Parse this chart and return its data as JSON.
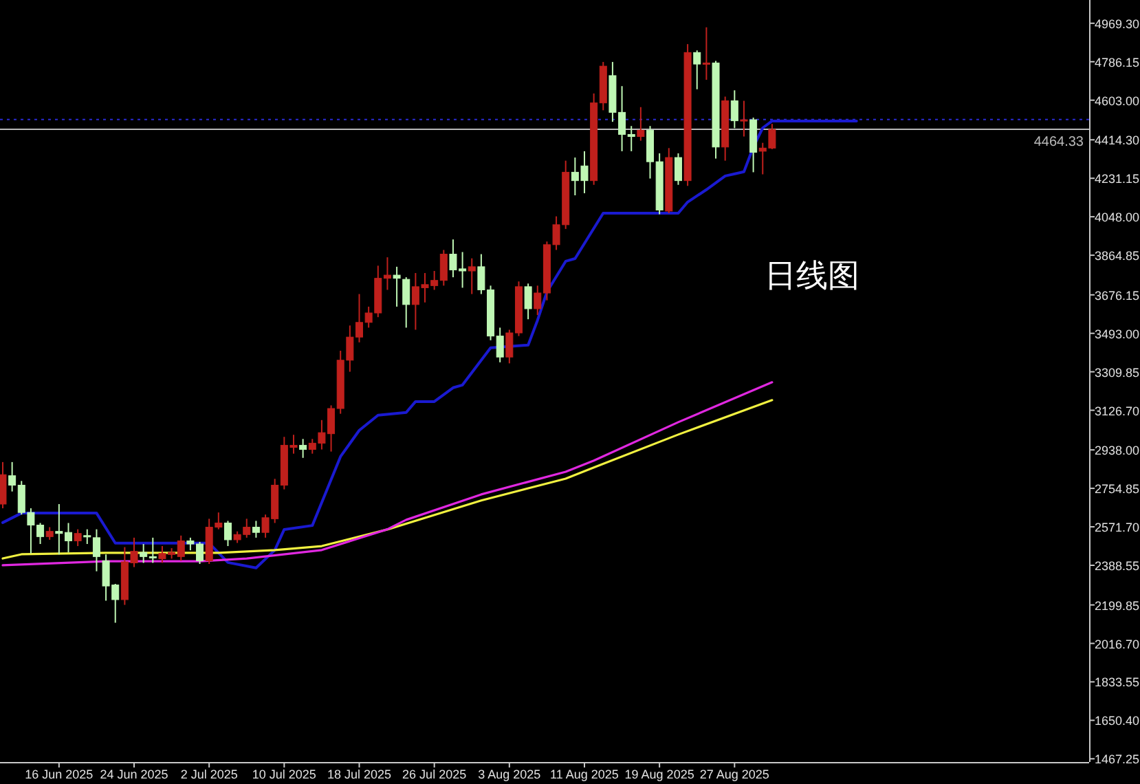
{
  "chart_data": {
    "type": "candlestick",
    "x": [
      "2025-06-10",
      "2025-06-11",
      "2025-06-12",
      "2025-06-13",
      "2025-06-14",
      "2025-06-15",
      "2025-06-16",
      "2025-06-17",
      "2025-06-18",
      "2025-06-19",
      "2025-06-20",
      "2025-06-21",
      "2025-06-22",
      "2025-06-23",
      "2025-06-24",
      "2025-06-25",
      "2025-06-26",
      "2025-06-27",
      "2025-06-28",
      "2025-06-29",
      "2025-06-30",
      "2025-07-01",
      "2025-07-02",
      "2025-07-03",
      "2025-07-04",
      "2025-07-05",
      "2025-07-06",
      "2025-07-07",
      "2025-07-08",
      "2025-07-09",
      "2025-07-10",
      "2025-07-11",
      "2025-07-12",
      "2025-07-13",
      "2025-07-14",
      "2025-07-15",
      "2025-07-16",
      "2025-07-17",
      "2025-07-18",
      "2025-07-19",
      "2025-07-20",
      "2025-07-21",
      "2025-07-22",
      "2025-07-23",
      "2025-07-24",
      "2025-07-25",
      "2025-07-26",
      "2025-07-27",
      "2025-07-28",
      "2025-07-29",
      "2025-07-30",
      "2025-07-31",
      "2025-08-01",
      "2025-08-02",
      "2025-08-03",
      "2025-08-04",
      "2025-08-05",
      "2025-08-06",
      "2025-08-07",
      "2025-08-08",
      "2025-08-09",
      "2025-08-10",
      "2025-08-11",
      "2025-08-12",
      "2025-08-13",
      "2025-08-14",
      "2025-08-15",
      "2025-08-16",
      "2025-08-17",
      "2025-08-18",
      "2025-08-19",
      "2025-08-20",
      "2025-08-21",
      "2025-08-22",
      "2025-08-23",
      "2025-08-24",
      "2025-08-25",
      "2025-08-26",
      "2025-08-27",
      "2025-08-28",
      "2025-08-29",
      "2025-08-30",
      "2025-08-31"
    ],
    "ohlc": [
      [
        2680,
        2880,
        2660,
        2820
      ],
      [
        2815,
        2880,
        2740,
        2770
      ],
      [
        2770,
        2790,
        2630,
        2640
      ],
      [
        2640,
        2660,
        2445,
        2580
      ],
      [
        2580,
        2590,
        2490,
        2525
      ],
      [
        2525,
        2570,
        2510,
        2550
      ],
      [
        2550,
        2680,
        2440,
        2540
      ],
      [
        2545,
        2590,
        2450,
        2505
      ],
      [
        2505,
        2560,
        2480,
        2540
      ],
      [
        2530,
        2560,
        2490,
        2525
      ],
      [
        2520,
        2560,
        2360,
        2430
      ],
      [
        2410,
        2440,
        2220,
        2290
      ],
      [
        2295,
        2300,
        2115,
        2225
      ],
      [
        2225,
        2475,
        2200,
        2405
      ],
      [
        2400,
        2520,
        2380,
        2455
      ],
      [
        2450,
        2490,
        2400,
        2430
      ],
      [
        2430,
        2520,
        2400,
        2425
      ],
      [
        2420,
        2480,
        2400,
        2445
      ],
      [
        2440,
        2470,
        2420,
        2450
      ],
      [
        2430,
        2530,
        2410,
        2505
      ],
      [
        2505,
        2520,
        2460,
        2490
      ],
      [
        2490,
        2500,
        2395,
        2410
      ],
      [
        2410,
        2610,
        2395,
        2570
      ],
      [
        2570,
        2640,
        2560,
        2590
      ],
      [
        2590,
        2600,
        2480,
        2510
      ],
      [
        2510,
        2550,
        2495,
        2535
      ],
      [
        2535,
        2610,
        2520,
        2570
      ],
      [
        2570,
        2600,
        2520,
        2545
      ],
      [
        2545,
        2630,
        2520,
        2615
      ],
      [
        2610,
        2800,
        2590,
        2770
      ],
      [
        2770,
        3000,
        2750,
        2960
      ],
      [
        2950,
        3010,
        2920,
        2960
      ],
      [
        2960,
        2990,
        2900,
        2940
      ],
      [
        2940,
        2990,
        2920,
        2970
      ],
      [
        2970,
        3080,
        2940,
        3020
      ],
      [
        3015,
        3150,
        2930,
        3135
      ],
      [
        3135,
        3410,
        3110,
        3365
      ],
      [
        3365,
        3530,
        3310,
        3475
      ],
      [
        3475,
        3680,
        3450,
        3545
      ],
      [
        3545,
        3620,
        3520,
        3590
      ],
      [
        3590,
        3815,
        3570,
        3755
      ],
      [
        3755,
        3855,
        3700,
        3770
      ],
      [
        3770,
        3810,
        3620,
        3755
      ],
      [
        3750,
        3760,
        3520,
        3630
      ],
      [
        3630,
        3780,
        3510,
        3715
      ],
      [
        3710,
        3780,
        3640,
        3725
      ],
      [
        3720,
        3790,
        3700,
        3745
      ],
      [
        3745,
        3890,
        3720,
        3870
      ],
      [
        3870,
        3940,
        3760,
        3795
      ],
      [
        3800,
        3880,
        3710,
        3790
      ],
      [
        3790,
        3850,
        3680,
        3810
      ],
      [
        3810,
        3870,
        3680,
        3700
      ],
      [
        3700,
        3720,
        3460,
        3480
      ],
      [
        3480,
        3520,
        3355,
        3380
      ],
      [
        3380,
        3510,
        3350,
        3495
      ],
      [
        3495,
        3740,
        3480,
        3715
      ],
      [
        3715,
        3730,
        3560,
        3610
      ],
      [
        3610,
        3720,
        3580,
        3685
      ],
      [
        3685,
        3930,
        3650,
        3915
      ],
      [
        3915,
        4050,
        3890,
        4010
      ],
      [
        4010,
        4315,
        3990,
        4260
      ],
      [
        4260,
        4330,
        4150,
        4220
      ],
      [
        4290,
        4360,
        4160,
        4220
      ],
      [
        4220,
        4635,
        4200,
        4590
      ],
      [
        4590,
        4785,
        4555,
        4765
      ],
      [
        4720,
        4785,
        4500,
        4545
      ],
      [
        4545,
        4670,
        4360,
        4440
      ],
      [
        4440,
        4480,
        4360,
        4430
      ],
      [
        4430,
        4570,
        4410,
        4460
      ],
      [
        4460,
        4480,
        4230,
        4310
      ],
      [
        4310,
        4350,
        4060,
        4080
      ],
      [
        4075,
        4375,
        4065,
        4330
      ],
      [
        4330,
        4350,
        4200,
        4220
      ],
      [
        4220,
        4870,
        4195,
        4830
      ],
      [
        4830,
        4840,
        4655,
        4775
      ],
      [
        4775,
        4950,
        4700,
        4780
      ],
      [
        4780,
        4790,
        4325,
        4380
      ],
      [
        4380,
        4620,
        4315,
        4600
      ],
      [
        4600,
        4650,
        4470,
        4505
      ],
      [
        4505,
        4600,
        4430,
        4510
      ],
      [
        4510,
        4520,
        4260,
        4355
      ],
      [
        4360,
        4400,
        4250,
        4375
      ],
      [
        4375,
        4490,
        4370,
        4464
      ]
    ],
    "colors": [
      "#c0201c",
      "#bff7b4",
      "#bff7b4",
      "#bff7b4",
      "#bff7b4",
      "#c0201c",
      "#bff7b4",
      "#bff7b4",
      "#c0201c",
      "#bff7b4",
      "#bff7b4",
      "#bff7b4",
      "#bff7b4",
      "#c0201c",
      "#c0201c",
      "#bff7b4",
      "#bff7b4",
      "#c0201c",
      "#c0201c",
      "#c0201c",
      "#bff7b4",
      "#bff7b4",
      "#c0201c",
      "#c0201c",
      "#bff7b4",
      "#c0201c",
      "#c0201c",
      "#bff7b4",
      "#c0201c",
      "#c0201c",
      "#c0201c",
      "#c0201c",
      "#bff7b4",
      "#c0201c",
      "#c0201c",
      "#c0201c",
      "#c0201c",
      "#c0201c",
      "#c0201c",
      "#c0201c",
      "#c0201c",
      "#c0201c",
      "#bff7b4",
      "#bff7b4",
      "#c0201c",
      "#c0201c",
      "#c0201c",
      "#c0201c",
      "#bff7b4",
      "#bff7b4",
      "#c0201c",
      "#bff7b4",
      "#bff7b4",
      "#bff7b4",
      "#c0201c",
      "#c0201c",
      "#bff7b4",
      "#c0201c",
      "#c0201c",
      "#c0201c",
      "#c0201c",
      "#bff7b4",
      "#bff7b4",
      "#c0201c",
      "#c0201c",
      "#bff7b4",
      "#bff7b4",
      "#bff7b4",
      "#c0201c",
      "#bff7b4",
      "#bff7b4",
      "#c0201c",
      "#bff7b4",
      "#c0201c",
      "#bff7b4",
      "#c0201c",
      "#bff7b4",
      "#c0201c",
      "#bff7b4",
      "#c0201c",
      "#bff7b4",
      "#c0201c",
      "#c0201c"
    ],
    "series": [
      {
        "type": "line",
        "color": "#1a1ad0",
        "x": [
          "2025-06-10",
          "2025-06-12",
          "2025-06-20",
          "2025-06-22",
          "2025-07-02",
          "2025-07-04",
          "2025-07-07",
          "2025-07-09",
          "2025-07-10",
          "2025-07-13",
          "2025-07-16",
          "2025-07-18",
          "2025-07-20",
          "2025-07-23",
          "2025-07-24",
          "2025-07-26",
          "2025-07-28",
          "2025-07-29",
          "2025-08-01",
          "2025-08-05",
          "2025-08-06",
          "2025-08-07",
          "2025-08-09",
          "2025-08-10",
          "2025-08-13",
          "2025-08-21",
          "2025-08-22",
          "2025-08-24",
          "2025-08-26",
          "2025-08-28",
          "2025-08-29",
          "2025-08-30",
          "2025-08-31",
          "2025-09-09"
        ],
        "values": [
          2592,
          2637,
          2637,
          2494,
          2494,
          2402,
          2376,
          2461,
          2559,
          2578,
          2906,
          3031,
          3103,
          3116,
          3168,
          3168,
          3234,
          3247,
          3424,
          3437,
          3555,
          3690,
          3836,
          3849,
          4065,
          4065,
          4118,
          4177,
          4242,
          4262,
          4380,
          4471,
          4504,
          4504
        ]
      },
      {
        "type": "line",
        "color": "#f0f040",
        "x": [
          "2025-06-10",
          "2025-06-12",
          "2025-06-21",
          "2025-07-03",
          "2025-07-09",
          "2025-07-14",
          "2025-07-21",
          "2025-07-31",
          "2025-08-09",
          "2025-08-12",
          "2025-08-21",
          "2025-08-31"
        ],
        "values": [
          2421,
          2441,
          2448,
          2448,
          2461,
          2480,
          2559,
          2697,
          2801,
          2854,
          3011,
          3175
        ]
      },
      {
        "type": "line",
        "color": "#e028e0",
        "x": [
          "2025-06-10",
          "2025-06-21",
          "2025-07-01",
          "2025-07-06",
          "2025-07-14",
          "2025-07-21",
          "2025-07-23",
          "2025-07-31",
          "2025-08-09",
          "2025-08-12",
          "2025-08-21",
          "2025-08-31"
        ],
        "values": [
          2389,
          2408,
          2408,
          2421,
          2461,
          2560,
          2605,
          2726,
          2834,
          2887,
          3070,
          3260
        ]
      }
    ],
    "xlim": [
      "2025-06-09T17:00",
      "2025-10-03T19:00"
    ],
    "ylim": [
      1452,
      5080
    ],
    "xticks": [
      {
        "value": "2025-06-16",
        "label": "16 Jun 2025"
      },
      {
        "value": "2025-06-24",
        "label": "24 Jun 2025"
      },
      {
        "value": "2025-07-02",
        "label": "2 Jul 2025"
      },
      {
        "value": "2025-07-10",
        "label": "10 Jul 2025"
      },
      {
        "value": "2025-07-18",
        "label": "18 Jul 2025"
      },
      {
        "value": "2025-07-26",
        "label": "26 Jul 2025"
      },
      {
        "value": "2025-08-03",
        "label": "3 Aug 2025"
      },
      {
        "value": "2025-08-11",
        "label": "11 Aug 2025"
      },
      {
        "value": "2025-08-19",
        "label": "19 Aug 2025"
      },
      {
        "value": "2025-08-27",
        "label": "27 Aug 2025"
      }
    ],
    "yticks": [
      {
        "value": 4969.3,
        "label": "4969.30"
      },
      {
        "value": 4786.15,
        "label": "4786.15"
      },
      {
        "value": 4603,
        "label": "4603.00"
      },
      {
        "value": 4414.3,
        "label": "4414.30"
      },
      {
        "value": 4231.15,
        "label": "4231.15"
      },
      {
        "value": 4048,
        "label": "4048.00"
      },
      {
        "value": 3864.85,
        "label": "3864.85"
      },
      {
        "value": 3676.15,
        "label": "3676.15"
      },
      {
        "value": 3493,
        "label": "3493.00"
      },
      {
        "value": 3309.85,
        "label": "3309.85"
      },
      {
        "value": 3126.7,
        "label": "3126.70"
      },
      {
        "value": 2938,
        "label": "2938.00"
      },
      {
        "value": 2754.85,
        "label": "2754.85"
      },
      {
        "value": 2571.7,
        "label": "2571.70"
      },
      {
        "value": 2388.55,
        "label": "2388.55"
      },
      {
        "value": 2199.85,
        "label": "2199.85"
      },
      {
        "value": 2016.7,
        "label": "2016.70"
      },
      {
        "value": 1833.55,
        "label": "1833.55"
      },
      {
        "value": 1650.4,
        "label": "1650.40"
      },
      {
        "value": 1467.25,
        "label": "1467.25"
      }
    ],
    "ref_lines": [
      {
        "axis": "y",
        "value": 4511,
        "color": "#2a2ad0",
        "line_style": "dotted"
      },
      {
        "axis": "y",
        "value": 4464.33,
        "label": "4464.33",
        "color": "#b8b8b8"
      }
    ],
    "annotations": [
      "日线图"
    ]
  }
}
